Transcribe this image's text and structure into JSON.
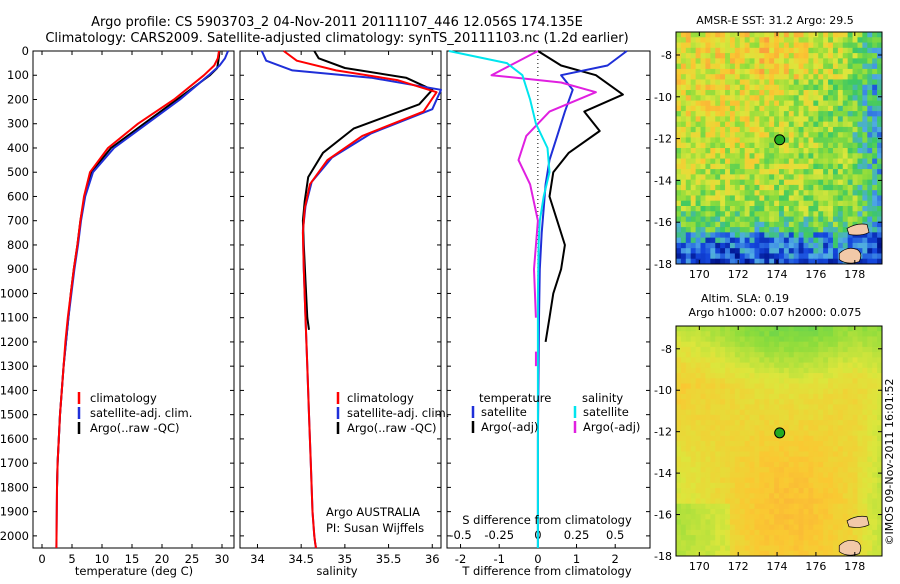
{
  "header": {
    "line1": "Argo profile: CS 5903703_2 04-Nov-2011 20111107_446 12.056S 174.135E",
    "line2": "Climatology: CARS2009. Satellite-adjusted climatology: synTS_20111103.nc (1.2d earlier)"
  },
  "colors": {
    "climatology": "#ff0000",
    "satellite_adj": "#1f2fd8",
    "argo": "#000000",
    "salinity_satellite": "#00e5ee",
    "salinity_argo": "#e020e0",
    "land": "#f2c9a8",
    "float_marker": "#22aa22"
  },
  "depth_axis": {
    "ticks": [
      "0",
      "100",
      "200",
      "300",
      "400",
      "500",
      "600",
      "700",
      "800",
      "900",
      "1000",
      "1100",
      "1200",
      "1300",
      "1400",
      "1500",
      "1600",
      "1700",
      "1800",
      "1900",
      "2000"
    ],
    "min": 0,
    "max": 2050
  },
  "chart_data": [
    {
      "type": "line",
      "panel": "temperature",
      "xlabel": "temperature (deg C)",
      "xlim": [
        -1.5,
        32
      ],
      "xticks": [
        "0",
        "5",
        "10",
        "15",
        "20",
        "25",
        "30"
      ],
      "ylim": [
        2050,
        0
      ],
      "legend": {
        "placement": "lower-right",
        "entries": [
          "climatology",
          "satellite-adj. clim.",
          "Argo(..raw -QC)"
        ]
      },
      "series": [
        {
          "name": "climatology",
          "x": [
            29.5,
            29.3,
            28.7,
            27.0,
            22.0,
            16.0,
            11.0,
            8.0,
            7.0,
            6.4,
            5.9,
            5.3,
            4.8,
            4.3,
            3.9,
            3.6,
            3.3,
            3.0,
            2.8,
            2.6,
            2.5,
            2.4
          ],
          "y": [
            0,
            30,
            60,
            100,
            200,
            300,
            400,
            500,
            600,
            700,
            800,
            900,
            1000,
            1100,
            1200,
            1300,
            1400,
            1500,
            1600,
            1700,
            1800,
            2050
          ]
        },
        {
          "name": "satellite-adj. clim.",
          "x": [
            31.0,
            30.5,
            29.6,
            27.8,
            23.0,
            17.5,
            12.0,
            8.5,
            7.2,
            6.5,
            6.0,
            5.4,
            4.9,
            4.4,
            4.0,
            3.6,
            3.3,
            3.0,
            2.8,
            2.6,
            2.5,
            2.4
          ],
          "y": [
            0,
            30,
            60,
            100,
            200,
            300,
            400,
            500,
            600,
            700,
            800,
            900,
            1000,
            1100,
            1200,
            1300,
            1400,
            1500,
            1600,
            1700,
            1800,
            2050
          ]
        },
        {
          "name": "Argo(..raw -QC)",
          "x": [
            29.6,
            29.4,
            29.2,
            28.0,
            22.5,
            17.0,
            11.5,
            8.2,
            7.1,
            6.4,
            5.9,
            5.3,
            4.8,
            4.4,
            4.0,
            3.6,
            3.3,
            3.0,
            2.8,
            2.6,
            2.5
          ],
          "y": [
            0,
            40,
            70,
            100,
            200,
            300,
            400,
            500,
            600,
            700,
            800,
            900,
            1000,
            1100,
            1200,
            1300,
            1400,
            1500,
            1600,
            1700,
            1800
          ]
        }
      ]
    },
    {
      "type": "line",
      "panel": "salinity",
      "xlabel": "salinity",
      "xlim": [
        33.8,
        36.1
      ],
      "xticks": [
        "34",
        "34.5",
        "35",
        "35.5",
        "36"
      ],
      "ylim": [
        2050,
        0
      ],
      "legend": {
        "placement": "lower-right",
        "entries": [
          "climatology",
          "satellite-adj. clim.",
          "Argo(..raw -QC)"
        ]
      },
      "series": [
        {
          "name": "climatology",
          "x": [
            34.3,
            34.45,
            34.9,
            35.6,
            36.05,
            35.9,
            35.2,
            34.8,
            34.6,
            34.54,
            34.52,
            34.53,
            34.55,
            34.57,
            34.59,
            34.61,
            34.63,
            34.65,
            34.66,
            34.67
          ],
          "y": [
            0,
            40,
            80,
            120,
            170,
            250,
            350,
            450,
            550,
            650,
            750,
            900,
            1100,
            1300,
            1500,
            1700,
            1900,
            2000,
            2030,
            2050
          ]
        },
        {
          "name": "satellite-adj. clim.",
          "x": [
            34.05,
            34.1,
            34.4,
            35.3,
            36.1,
            36.0,
            35.3,
            34.85,
            34.62,
            34.55,
            34.52,
            34.53,
            34.55,
            34.57,
            34.59,
            34.61,
            34.63,
            34.65,
            34.66,
            34.67
          ],
          "y": [
            0,
            40,
            80,
            110,
            160,
            240,
            340,
            440,
            540,
            640,
            740,
            900,
            1100,
            1300,
            1500,
            1700,
            1900,
            2000,
            2030,
            2050
          ]
        },
        {
          "name": "Argo(..raw -QC)",
          "x": [
            34.65,
            34.7,
            35.0,
            35.7,
            36.0,
            35.85,
            35.1,
            34.75,
            34.58,
            34.54,
            34.52,
            34.53,
            34.55,
            34.57,
            34.59
          ],
          "y": [
            0,
            30,
            70,
            110,
            160,
            220,
            320,
            420,
            520,
            620,
            700,
            800,
            950,
            1100,
            1150
          ]
        }
      ]
    },
    {
      "type": "line",
      "panel": "difference",
      "xlabel_bottom": "T difference from climatology",
      "xlabel_top": "S difference from climatology",
      "xlim": [
        -2.35,
        2.9
      ],
      "xticks_bottom": [
        "-2",
        "-1",
        "0",
        "1",
        "2"
      ],
      "xticks_top": [
        "-0.5",
        "-0.25",
        "0",
        "0.25",
        "0.5"
      ],
      "ylim": [
        2050,
        0
      ],
      "legend": {
        "placement": "lower-center",
        "temperature_title": "temperature",
        "salinity_title": "salinity",
        "entries": [
          "satellite",
          "Argo(-adj)",
          "satellite",
          "Argo(-adj)"
        ]
      },
      "series": [
        {
          "name": "satellite",
          "group": "temperature",
          "x": [
            2.3,
            1.8,
            0.6,
            0.9,
            0.7,
            0.5,
            0.3,
            0.2,
            0.15,
            0.1,
            0.05,
            0.03,
            0.02,
            0.0,
            0.0
          ],
          "y": [
            0,
            60,
            100,
            160,
            250,
            350,
            450,
            550,
            650,
            750,
            900,
            1100,
            1300,
            1600,
            2050
          ]
        },
        {
          "name": "Argo(-adj)",
          "group": "temperature",
          "x": [
            0.0,
            0.6,
            1.5,
            2.2,
            1.2,
            1.6,
            0.8,
            0.4,
            0.3,
            0.5,
            0.7,
            0.6,
            0.4,
            0.3,
            0.2
          ],
          "y": [
            0,
            60,
            100,
            180,
            250,
            330,
            420,
            500,
            600,
            700,
            800,
            900,
            1000,
            1100,
            1200
          ]
        },
        {
          "name": "satellite",
          "group": "salinity",
          "x": [
            -2.3,
            -0.8,
            -0.4,
            -0.2,
            -0.05,
            0.25,
            0.3,
            0.15,
            0.05,
            0.02,
            0.0,
            0.0
          ],
          "y": [
            0,
            50,
            100,
            200,
            300,
            400,
            500,
            600,
            700,
            800,
            1000,
            2050
          ]
        },
        {
          "name": "Argo(-adj)",
          "group": "salinity",
          "x": [
            0.0,
            -0.6,
            -1.2,
            0.6,
            1.5,
            0.3,
            -0.3,
            -0.5,
            -0.2,
            0.0,
            -0.1,
            -0.05
          ],
          "y": [
            0,
            50,
            100,
            130,
            170,
            250,
            350,
            450,
            550,
            700,
            900,
            1100
          ]
        }
      ]
    },
    {
      "type": "heatmap",
      "panel": "sst-map",
      "title": "AMSR-E SST: 31.2 Argo: 29.5",
      "xlim": [
        168.8,
        179.4
      ],
      "ylim": [
        -18,
        -6.9
      ],
      "xticks": [
        "170",
        "172",
        "174",
        "176",
        "178"
      ],
      "yticks": [
        "-8",
        "-10",
        "-12",
        "-14",
        "-16",
        "-18"
      ],
      "float_position": {
        "lon": 174.135,
        "lat": -12.056
      }
    },
    {
      "type": "heatmap",
      "panel": "sla-map",
      "title_line1": "Altim. SLA: 0.19",
      "title_line2": "Argo h1000: 0.07 h2000: 0.075",
      "xlim": [
        168.8,
        179.4
      ],
      "ylim": [
        -18,
        -6.9
      ],
      "xticks": [
        "170",
        "172",
        "174",
        "176",
        "178"
      ],
      "yticks": [
        "-8",
        "-10",
        "-12",
        "-14",
        "-16",
        "-18"
      ],
      "float_position": {
        "lon": 174.135,
        "lat": -12.056
      }
    }
  ],
  "annotations": {
    "argo_line1": "Argo AUSTRALIA",
    "argo_line2": "PI: Susan Wijffels",
    "credit": "©IMOS 09-Nov-2011 16:01:52"
  }
}
